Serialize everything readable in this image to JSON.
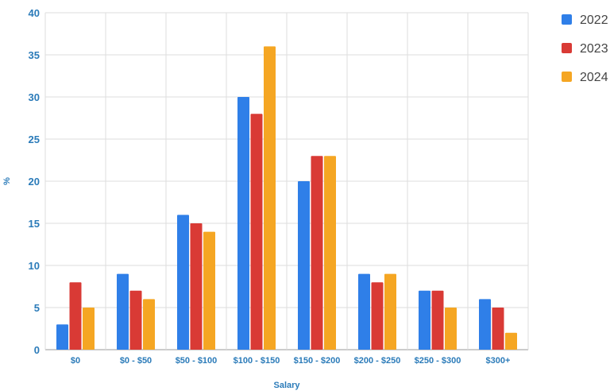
{
  "chart_data": {
    "type": "bar",
    "categories": [
      "$0",
      "$0 - $50",
      "$50 - $100",
      "$100 - $150",
      "$150 - $200",
      "$200 - $250",
      "$250 - $300",
      "$300+"
    ],
    "series": [
      {
        "name": "2022",
        "color": "#2f7fe8",
        "values": [
          3,
          9,
          16,
          30,
          20,
          9,
          7,
          6
        ]
      },
      {
        "name": "2023",
        "color": "#d93a35",
        "values": [
          8,
          7,
          15,
          28,
          23,
          8,
          7,
          5
        ]
      },
      {
        "name": "2024",
        "color": "#f5a623",
        "values": [
          5,
          6,
          14,
          36,
          23,
          9,
          5,
          2
        ]
      }
    ],
    "xlabel": "Salary",
    "ylabel": "%",
    "ylim": [
      0,
      40
    ],
    "yticks": [
      0,
      5,
      10,
      15,
      20,
      25,
      30,
      35,
      40
    ],
    "grid": true,
    "legend_position": "right"
  }
}
